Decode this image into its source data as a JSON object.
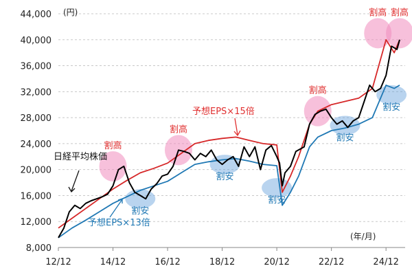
{
  "chart_data": {
    "type": "line",
    "yunit": "(円)",
    "xunit": "(年/月)",
    "ylim": [
      8000,
      44000
    ],
    "yticks": [
      8000,
      12000,
      16000,
      20000,
      24000,
      28000,
      32000,
      36000,
      40000,
      44000
    ],
    "ytick_labels": [
      "8,000",
      "12,000",
      "16,000",
      "20,000",
      "24,000",
      "28,000",
      "32,000",
      "36,000",
      "40,000",
      "44,000"
    ],
    "xlim": [
      0,
      12.7
    ],
    "xticks": [
      0,
      2,
      4,
      6,
      8,
      10,
      12
    ],
    "xtick_labels": [
      "12/12",
      "14/12",
      "16/12",
      "18/12",
      "20/12",
      "22/12",
      "24/12"
    ],
    "series": [
      {
        "name": "日経平均株価",
        "color": "#000000",
        "x": [
          0,
          0.2,
          0.4,
          0.6,
          0.8,
          1.0,
          1.2,
          1.4,
          1.6,
          1.8,
          2.0,
          2.2,
          2.4,
          2.6,
          2.8,
          3.0,
          3.2,
          3.4,
          3.6,
          3.8,
          4.0,
          4.2,
          4.4,
          4.6,
          4.8,
          5.0,
          5.2,
          5.4,
          5.6,
          5.8,
          6.0,
          6.2,
          6.4,
          6.6,
          6.8,
          7.0,
          7.2,
          7.4,
          7.6,
          7.8,
          8.0,
          8.1,
          8.2,
          8.3,
          8.5,
          8.7,
          9.0,
          9.2,
          9.4,
          9.6,
          9.8,
          10.0,
          10.2,
          10.4,
          10.6,
          10.8,
          11.0,
          11.2,
          11.4,
          11.6,
          11.8,
          12.0,
          12.2,
          12.4,
          12.5
        ],
        "values": [
          9500,
          11000,
          13500,
          14500,
          14000,
          14800,
          15200,
          15500,
          15800,
          16200,
          17500,
          20000,
          20500,
          18000,
          16500,
          16000,
          15500,
          17000,
          17800,
          19000,
          19300,
          20500,
          23000,
          22800,
          22500,
          21500,
          22500,
          22000,
          23000,
          21500,
          20800,
          21500,
          22000,
          20500,
          23500,
          22000,
          23500,
          20000,
          23000,
          23700,
          22000,
          21000,
          17500,
          19500,
          20500,
          22800,
          23500,
          27000,
          28500,
          29000,
          29300,
          28000,
          27000,
          27500,
          26500,
          27500,
          28000,
          30500,
          33000,
          32000,
          32500,
          34500,
          39000,
          38500,
          40000
        ]
      },
      {
        "name": "予想EPS×15倍",
        "color": "#d62728",
        "x": [
          0,
          0.5,
          1.0,
          1.5,
          2.0,
          2.5,
          3.0,
          3.5,
          4.0,
          4.5,
          5.0,
          5.5,
          6.0,
          6.5,
          7.0,
          7.5,
          8.0,
          8.2,
          8.5,
          8.8,
          9.2,
          9.5,
          10.0,
          10.5,
          11.0,
          11.5,
          12.0,
          12.3,
          12.5
        ],
        "values": [
          11000,
          12500,
          14000,
          15500,
          17000,
          18300,
          19500,
          20200,
          21000,
          22500,
          24000,
          24500,
          24800,
          25000,
          24500,
          24000,
          23800,
          16500,
          19000,
          22000,
          27000,
          29000,
          30000,
          30500,
          31000,
          32500,
          40000,
          38000,
          40000
        ]
      },
      {
        "name": "予想EPS×13倍",
        "color": "#1f78b4",
        "x": [
          0,
          0.5,
          1.0,
          1.5,
          2.0,
          2.5,
          3.0,
          3.5,
          4.0,
          4.5,
          5.0,
          5.5,
          6.0,
          6.5,
          7.0,
          7.5,
          8.0,
          8.2,
          8.5,
          8.8,
          9.2,
          9.5,
          10.0,
          10.5,
          11.0,
          11.5,
          12.0,
          12.3,
          12.5
        ],
        "values": [
          9500,
          11000,
          12200,
          13500,
          14800,
          15800,
          16800,
          17500,
          18200,
          19500,
          20800,
          21200,
          21500,
          21700,
          21300,
          20800,
          20600,
          14500,
          16500,
          19000,
          23500,
          25000,
          26000,
          26400,
          27000,
          28000,
          33000,
          32500,
          33000
        ]
      }
    ],
    "highlights": [
      {
        "label": "割高",
        "kind": "high",
        "x": 2.0,
        "y": 20500
      },
      {
        "label": "割高",
        "kind": "high",
        "x": 4.4,
        "y": 23000
      },
      {
        "label": "割高",
        "kind": "high",
        "x": 9.5,
        "y": 29000
      },
      {
        "label": "割高",
        "kind": "high",
        "x": 11.7,
        "y": 41000
      },
      {
        "label": "割高",
        "kind": "high",
        "x": 12.5,
        "y": 41000
      },
      {
        "label": "割安",
        "kind": "low",
        "x": 3.0,
        "y": 15500
      },
      {
        "label": "割安",
        "kind": "low",
        "x": 6.1,
        "y": 20800
      },
      {
        "label": "割安",
        "kind": "low",
        "x": 8.0,
        "y": 17200
      },
      {
        "label": "割安",
        "kind": "low",
        "x": 10.5,
        "y": 26800
      },
      {
        "label": "割安",
        "kind": "low",
        "x": 12.2,
        "y": 31500
      }
    ]
  }
}
